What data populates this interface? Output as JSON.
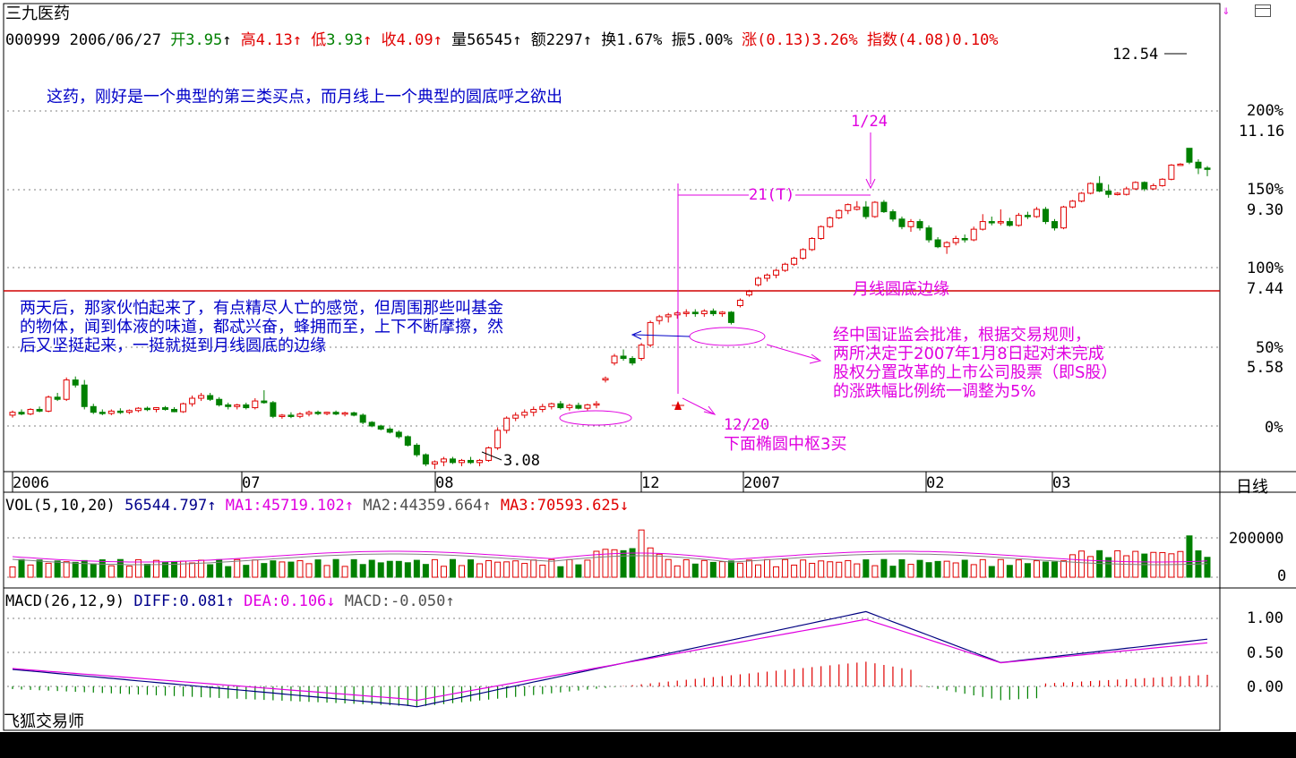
{
  "header": {
    "stock_name": "三九医药",
    "code": "000999",
    "date": "2006/06/27",
    "open_label": "开",
    "open": "3.95",
    "high_label": "高",
    "high": "4.13",
    "low_label": "低",
    "low": "3.93",
    "close_label": "收",
    "close": "4.09",
    "volume_label": "量",
    "volume": "56545",
    "amount_label": "额",
    "amount": "2297",
    "turnover_label": "换",
    "turnover": "1.67%",
    "amplitude_label": "振",
    "amplitude": "5.00%",
    "change_label": "涨",
    "change": "(0.13)3.26%",
    "index_label": "指数",
    "index": "(4.08)0.10%",
    "up_arrow": "↑"
  },
  "right_axis": {
    "percent_labels": [
      "200%",
      "150%",
      "100%",
      "50%",
      "0%"
    ],
    "price_labels": [
      "11.16",
      "9.30",
      "7.44",
      "5.58"
    ],
    "period_label": "日线"
  },
  "x_axis": {
    "labels": [
      "2006",
      "07",
      "08",
      "12",
      "2007",
      "02",
      "03"
    ]
  },
  "annotations": {
    "top_note": "这药，刚好是一个典型的第三类买点，而月线上一个典型的圆底呼之欲出",
    "left_note": [
      "两天后，那家伙怕起来了，有点精尽人亡的感觉，但周围那些叫基金",
      "的物体，闻到体液的味道，都忒兴奋，蜂拥而至，上下不断摩擦，然",
      "后又坚挺起来，一挺就挺到月线圆底的边缘"
    ],
    "right_note": [
      "经中国证监会批准，根据交易规则，",
      "两所决定于2007年1月8日起对未完成",
      "股权分置改革的上市公司股票（即S股）",
      "的涨跌幅比例统一调整为5%"
    ],
    "round_bottom": "月线圆底边缘",
    "date_124": "1/24",
    "label_21t": "21(T)",
    "date_1220": "12/20",
    "pivot_note": "下面椭圆中枢3买",
    "high_price": "12.54",
    "low_price": "3.08"
  },
  "volume_panel": {
    "title": "VOL(5,10,20)",
    "vol": "56544.797",
    "ma1": "MA1:45719.102",
    "ma2": "MA2:44359.664",
    "ma3": "MA3:70593.625",
    "up": "↑",
    "down": "↓",
    "axis": [
      "200000",
      "0"
    ]
  },
  "macd_panel": {
    "title": "MACD(26,12,9)",
    "diff": "DIFF:0.081",
    "dea": "DEA:0.106",
    "macd": "MACD:-0.050",
    "up": "↑",
    "down": "↓",
    "axis": [
      "1.00",
      "0.50",
      "0.00"
    ]
  },
  "brand": "飞狐交易师",
  "colors": {
    "up": "#e00000",
    "down": "#008000",
    "annot": "#e000e0",
    "note": "#0000c8"
  },
  "chart_data": {
    "type": "candlestick",
    "title": "三九医药",
    "ohlc_series": [
      {
        "o": 3.9,
        "h": 3.98,
        "l": 3.86,
        "c": 3.95
      },
      {
        "o": 3.95,
        "h": 4.0,
        "l": 3.9,
        "c": 3.92
      },
      {
        "o": 3.92,
        "h": 4.02,
        "l": 3.9,
        "c": 4.0
      },
      {
        "o": 4.0,
        "h": 4.05,
        "l": 3.95,
        "c": 3.97
      },
      {
        "o": 3.97,
        "h": 4.25,
        "l": 3.95,
        "c": 4.22
      },
      {
        "o": 4.22,
        "h": 4.3,
        "l": 4.15,
        "c": 4.18
      },
      {
        "o": 4.18,
        "h": 4.6,
        "l": 4.15,
        "c": 4.55
      },
      {
        "o": 4.55,
        "h": 4.62,
        "l": 4.4,
        "c": 4.45
      },
      {
        "o": 4.45,
        "h": 4.55,
        "l": 4.0,
        "c": 4.05
      },
      {
        "o": 4.05,
        "h": 4.1,
        "l": 3.92,
        "c": 3.95
      },
      {
        "o": 3.95,
        "h": 4.0,
        "l": 3.9,
        "c": 3.93
      },
      {
        "o": 3.93,
        "h": 4.0,
        "l": 3.9,
        "c": 3.97
      },
      {
        "o": 3.97,
        "h": 4.02,
        "l": 3.92,
        "c": 3.95
      },
      {
        "o": 3.95,
        "h": 4.0,
        "l": 3.92,
        "c": 3.98
      },
      {
        "o": 3.98,
        "h": 4.04,
        "l": 3.95,
        "c": 4.02
      },
      {
        "o": 4.02,
        "h": 4.05,
        "l": 3.97,
        "c": 4.0
      },
      {
        "o": 4.0,
        "h": 4.04,
        "l": 3.95,
        "c": 4.03
      },
      {
        "o": 4.03,
        "h": 4.06,
        "l": 3.98,
        "c": 4.0
      },
      {
        "o": 4.0,
        "h": 4.04,
        "l": 3.95,
        "c": 3.96
      },
      {
        "o": 3.96,
        "h": 4.12,
        "l": 3.94,
        "c": 4.1
      },
      {
        "o": 4.1,
        "h": 4.25,
        "l": 4.05,
        "c": 4.2
      },
      {
        "o": 4.2,
        "h": 4.3,
        "l": 4.15,
        "c": 4.25
      },
      {
        "o": 4.25,
        "h": 4.3,
        "l": 4.15,
        "c": 4.18
      },
      {
        "o": 4.18,
        "h": 4.22,
        "l": 4.05,
        "c": 4.08
      },
      {
        "o": 4.08,
        "h": 4.12,
        "l": 4.0,
        "c": 4.05
      },
      {
        "o": 4.05,
        "h": 4.1,
        "l": 4.0,
        "c": 4.08
      },
      {
        "o": 4.08,
        "h": 4.12,
        "l": 4.0,
        "c": 4.03
      },
      {
        "o": 4.03,
        "h": 4.2,
        "l": 4.0,
        "c": 4.15
      },
      {
        "o": 4.15,
        "h": 4.35,
        "l": 4.1,
        "c": 4.12
      },
      {
        "o": 4.12,
        "h": 4.15,
        "l": 3.85,
        "c": 3.88
      },
      {
        "o": 3.88,
        "h": 3.92,
        "l": 3.84,
        "c": 3.9
      },
      {
        "o": 3.9,
        "h": 3.95,
        "l": 3.85,
        "c": 3.88
      },
      {
        "o": 3.88,
        "h": 3.95,
        "l": 3.85,
        "c": 3.92
      },
      {
        "o": 3.92,
        "h": 3.98,
        "l": 3.88,
        "c": 3.95
      },
      {
        "o": 3.95,
        "h": 3.98,
        "l": 3.9,
        "c": 3.93
      },
      {
        "o": 3.93,
        "h": 3.96,
        "l": 3.9,
        "c": 3.95
      },
      {
        "o": 3.95,
        "h": 3.98,
        "l": 3.9,
        "c": 3.92
      },
      {
        "o": 3.92,
        "h": 3.96,
        "l": 3.88,
        "c": 3.94
      },
      {
        "o": 3.94,
        "h": 3.96,
        "l": 3.88,
        "c": 3.9
      },
      {
        "o": 3.9,
        "h": 3.93,
        "l": 3.75,
        "c": 3.78
      },
      {
        "o": 3.78,
        "h": 3.8,
        "l": 3.7,
        "c": 3.72
      },
      {
        "o": 3.72,
        "h": 3.74,
        "l": 3.65,
        "c": 3.67
      },
      {
        "o": 3.67,
        "h": 3.7,
        "l": 3.6,
        "c": 3.62
      },
      {
        "o": 3.62,
        "h": 3.65,
        "l": 3.52,
        "c": 3.55
      },
      {
        "o": 3.55,
        "h": 3.57,
        "l": 3.4,
        "c": 3.42
      },
      {
        "o": 3.42,
        "h": 3.45,
        "l": 3.25,
        "c": 3.28
      },
      {
        "o": 3.28,
        "h": 3.3,
        "l": 3.12,
        "c": 3.15
      },
      {
        "o": 3.15,
        "h": 3.2,
        "l": 3.08,
        "c": 3.18
      },
      {
        "o": 3.18,
        "h": 3.25,
        "l": 3.12,
        "c": 3.22
      },
      {
        "o": 3.22,
        "h": 3.25,
        "l": 3.15,
        "c": 3.17
      },
      {
        "o": 3.17,
        "h": 3.22,
        "l": 3.12,
        "c": 3.2
      },
      {
        "o": 3.2,
        "h": 3.25,
        "l": 3.15,
        "c": 3.17
      },
      {
        "o": 3.17,
        "h": 3.22,
        "l": 3.12,
        "c": 3.2
      },
      {
        "o": 3.2,
        "h": 3.4,
        "l": 3.18,
        "c": 3.38
      },
      {
        "o": 3.38,
        "h": 3.7,
        "l": 3.35,
        "c": 3.65
      },
      {
        "o": 3.65,
        "h": 3.88,
        "l": 3.6,
        "c": 3.85
      },
      {
        "o": 3.85,
        "h": 3.95,
        "l": 3.8,
        "c": 3.9
      },
      {
        "o": 3.9,
        "h": 4.0,
        "l": 3.85,
        "c": 3.95
      },
      {
        "o": 3.95,
        "h": 4.05,
        "l": 3.88,
        "c": 4.0
      },
      {
        "o": 4.0,
        "h": 4.1,
        "l": 3.95,
        "c": 4.05
      },
      {
        "o": 4.05,
        "h": 4.12,
        "l": 4.0,
        "c": 4.1
      },
      {
        "o": 4.1,
        "h": 4.15,
        "l": 4.0,
        "c": 4.03
      },
      {
        "o": 4.03,
        "h": 4.1,
        "l": 3.98,
        "c": 4.07
      },
      {
        "o": 4.07,
        "h": 4.12,
        "l": 4.0,
        "c": 4.02
      },
      {
        "o": 4.02,
        "h": 4.1,
        "l": 3.98,
        "c": 4.08
      },
      {
        "o": 4.08,
        "h": 4.15,
        "l": 4.02,
        "c": 4.1
      },
      {
        "o": 4.55,
        "h": 4.62,
        "l": 4.5,
        "c": 4.58
      },
      {
        "o": 4.9,
        "h": 5.1,
        "l": 4.85,
        "c": 5.05
      },
      {
        "o": 5.05,
        "h": 5.2,
        "l": 4.95,
        "c": 5.0
      },
      {
        "o": 5.0,
        "h": 5.05,
        "l": 4.85,
        "c": 4.9
      },
      {
        "o": 5.0,
        "h": 5.35,
        "l": 4.95,
        "c": 5.3
      },
      {
        "o": 5.3,
        "h": 5.9,
        "l": 5.25,
        "c": 5.85
      },
      {
        "o": 5.9,
        "h": 6.05,
        "l": 5.8,
        "c": 6.0
      },
      {
        "o": 6.0,
        "h": 6.1,
        "l": 5.85,
        "c": 6.05
      },
      {
        "o": 6.05,
        "h": 6.15,
        "l": 5.95,
        "c": 6.1
      },
      {
        "o": 6.1,
        "h": 6.2,
        "l": 6.0,
        "c": 6.12
      },
      {
        "o": 6.12,
        "h": 6.2,
        "l": 6.0,
        "c": 6.08
      },
      {
        "o": 6.08,
        "h": 6.2,
        "l": 6.0,
        "c": 6.15
      },
      {
        "o": 6.15,
        "h": 6.22,
        "l": 6.02,
        "c": 6.08
      },
      {
        "o": 6.08,
        "h": 6.15,
        "l": 6.0,
        "c": 6.12
      },
      {
        "o": 6.12,
        "h": 6.15,
        "l": 5.8,
        "c": 5.85
      },
      {
        "o": 6.3,
        "h": 6.5,
        "l": 6.25,
        "c": 6.45
      },
      {
        "o": 6.6,
        "h": 6.75,
        "l": 6.55,
        "c": 6.7
      },
      {
        "o": 6.9,
        "h": 7.15,
        "l": 6.85,
        "c": 7.1
      },
      {
        "o": 7.1,
        "h": 7.25,
        "l": 7.0,
        "c": 7.2
      },
      {
        "o": 7.2,
        "h": 7.4,
        "l": 7.1,
        "c": 7.35
      },
      {
        "o": 7.35,
        "h": 7.6,
        "l": 7.3,
        "c": 7.55
      },
      {
        "o": 7.55,
        "h": 7.8,
        "l": 7.5,
        "c": 7.75
      },
      {
        "o": 7.75,
        "h": 8.1,
        "l": 7.7,
        "c": 8.05
      },
      {
        "o": 8.05,
        "h": 8.5,
        "l": 8.0,
        "c": 8.45
      },
      {
        "o": 8.45,
        "h": 8.95,
        "l": 8.4,
        "c": 8.9
      },
      {
        "o": 8.9,
        "h": 9.3,
        "l": 8.85,
        "c": 9.25
      },
      {
        "o": 9.25,
        "h": 9.6,
        "l": 9.2,
        "c": 9.55
      },
      {
        "o": 9.55,
        "h": 9.85,
        "l": 9.4,
        "c": 9.8
      },
      {
        "o": 9.6,
        "h": 9.95,
        "l": 9.55,
        "c": 9.7
      },
      {
        "o": 9.7,
        "h": 9.95,
        "l": 9.2,
        "c": 9.3
      },
      {
        "o": 9.3,
        "h": 9.95,
        "l": 9.25,
        "c": 9.9
      },
      {
        "o": 9.9,
        "h": 10.0,
        "l": 9.45,
        "c": 9.5
      },
      {
        "o": 9.5,
        "h": 9.6,
        "l": 9.1,
        "c": 9.2
      },
      {
        "o": 9.2,
        "h": 9.3,
        "l": 8.8,
        "c": 8.9
      },
      {
        "o": 8.9,
        "h": 9.2,
        "l": 8.7,
        "c": 9.1
      },
      {
        "o": 9.1,
        "h": 9.2,
        "l": 8.75,
        "c": 8.85
      },
      {
        "o": 8.85,
        "h": 8.95,
        "l": 8.3,
        "c": 8.4
      },
      {
        "o": 8.4,
        "h": 8.5,
        "l": 8.1,
        "c": 8.15
      },
      {
        "o": 8.15,
        "h": 8.35,
        "l": 7.9,
        "c": 8.3
      },
      {
        "o": 8.3,
        "h": 8.55,
        "l": 8.2,
        "c": 8.45
      },
      {
        "o": 8.45,
        "h": 8.6,
        "l": 8.3,
        "c": 8.4
      },
      {
        "o": 8.4,
        "h": 8.9,
        "l": 8.35,
        "c": 8.8
      },
      {
        "o": 8.8,
        "h": 9.4,
        "l": 8.75,
        "c": 9.1
      },
      {
        "o": 9.1,
        "h": 9.3,
        "l": 8.95,
        "c": 9.05
      },
      {
        "o": 9.05,
        "h": 9.6,
        "l": 8.95,
        "c": 9.1
      },
      {
        "o": 9.1,
        "h": 9.25,
        "l": 8.9,
        "c": 8.95
      },
      {
        "o": 8.95,
        "h": 9.45,
        "l": 8.9,
        "c": 9.35
      },
      {
        "o": 9.35,
        "h": 9.5,
        "l": 9.2,
        "c": 9.3
      },
      {
        "o": 9.3,
        "h": 9.7,
        "l": 9.25,
        "c": 9.6
      },
      {
        "o": 9.6,
        "h": 9.7,
        "l": 9.0,
        "c": 9.1
      },
      {
        "o": 9.1,
        "h": 9.2,
        "l": 8.75,
        "c": 8.85
      },
      {
        "o": 8.85,
        "h": 9.75,
        "l": 8.8,
        "c": 9.7
      },
      {
        "o": 9.7,
        "h": 10.0,
        "l": 9.65,
        "c": 9.95
      },
      {
        "o": 9.95,
        "h": 10.35,
        "l": 9.9,
        "c": 10.3
      },
      {
        "o": 10.3,
        "h": 10.8,
        "l": 10.25,
        "c": 10.75
      },
      {
        "o": 10.75,
        "h": 11.1,
        "l": 10.35,
        "c": 10.4
      },
      {
        "o": 10.4,
        "h": 10.7,
        "l": 10.1,
        "c": 10.25
      },
      {
        "o": 10.3,
        "h": 10.35,
        "l": 10.2,
        "c": 10.3
      },
      {
        "o": 10.25,
        "h": 10.6,
        "l": 10.2,
        "c": 10.5
      },
      {
        "o": 10.5,
        "h": 10.85,
        "l": 10.45,
        "c": 10.8
      },
      {
        "o": 10.8,
        "h": 10.85,
        "l": 10.4,
        "c": 10.5
      },
      {
        "o": 10.5,
        "h": 10.75,
        "l": 10.45,
        "c": 10.65
      },
      {
        "o": 10.65,
        "h": 11.0,
        "l": 10.6,
        "c": 10.95
      },
      {
        "o": 10.95,
        "h": 11.7,
        "l": 10.9,
        "c": 11.65
      },
      {
        "o": 11.7,
        "h": 11.75,
        "l": 11.65,
        "c": 11.7
      },
      {
        "o": 12.54,
        "h": 12.54,
        "l": 11.7,
        "c": 11.8
      },
      {
        "o": 11.8,
        "h": 11.95,
        "l": 11.2,
        "c": 11.5
      },
      {
        "o": 11.5,
        "h": 11.6,
        "l": 11.1,
        "c": 11.45
      }
    ],
    "markers": {
      "high": 12.54,
      "low": 3.08
    }
  }
}
